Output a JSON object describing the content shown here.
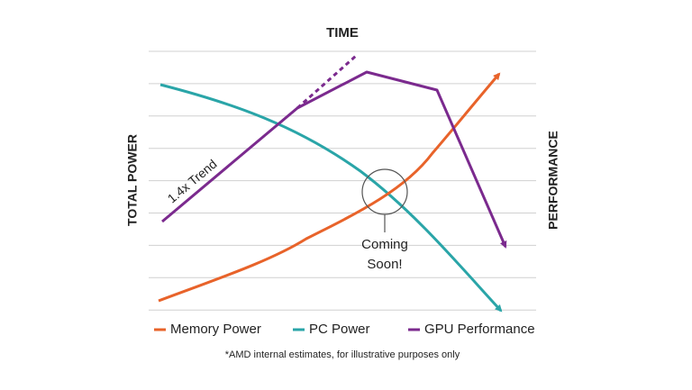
{
  "chart_data": {
    "type": "line",
    "title": "TIME",
    "ylabel": "TOTAL POWER",
    "y2label": "PERFORMANCE",
    "series": [
      {
        "name": "Memory Power",
        "color": "#e8632a"
      },
      {
        "name": "PC Power",
        "color": "#2aa5a8"
      },
      {
        "name": "GPU Performance",
        "color": "#7b2a8e"
      }
    ],
    "annotations": {
      "trend": "1.4x Trend",
      "coming": [
        "Coming",
        "Soon!"
      ]
    },
    "footnote": "*AMD internal estimates, for illustrative purposes only",
    "grid": true
  }
}
